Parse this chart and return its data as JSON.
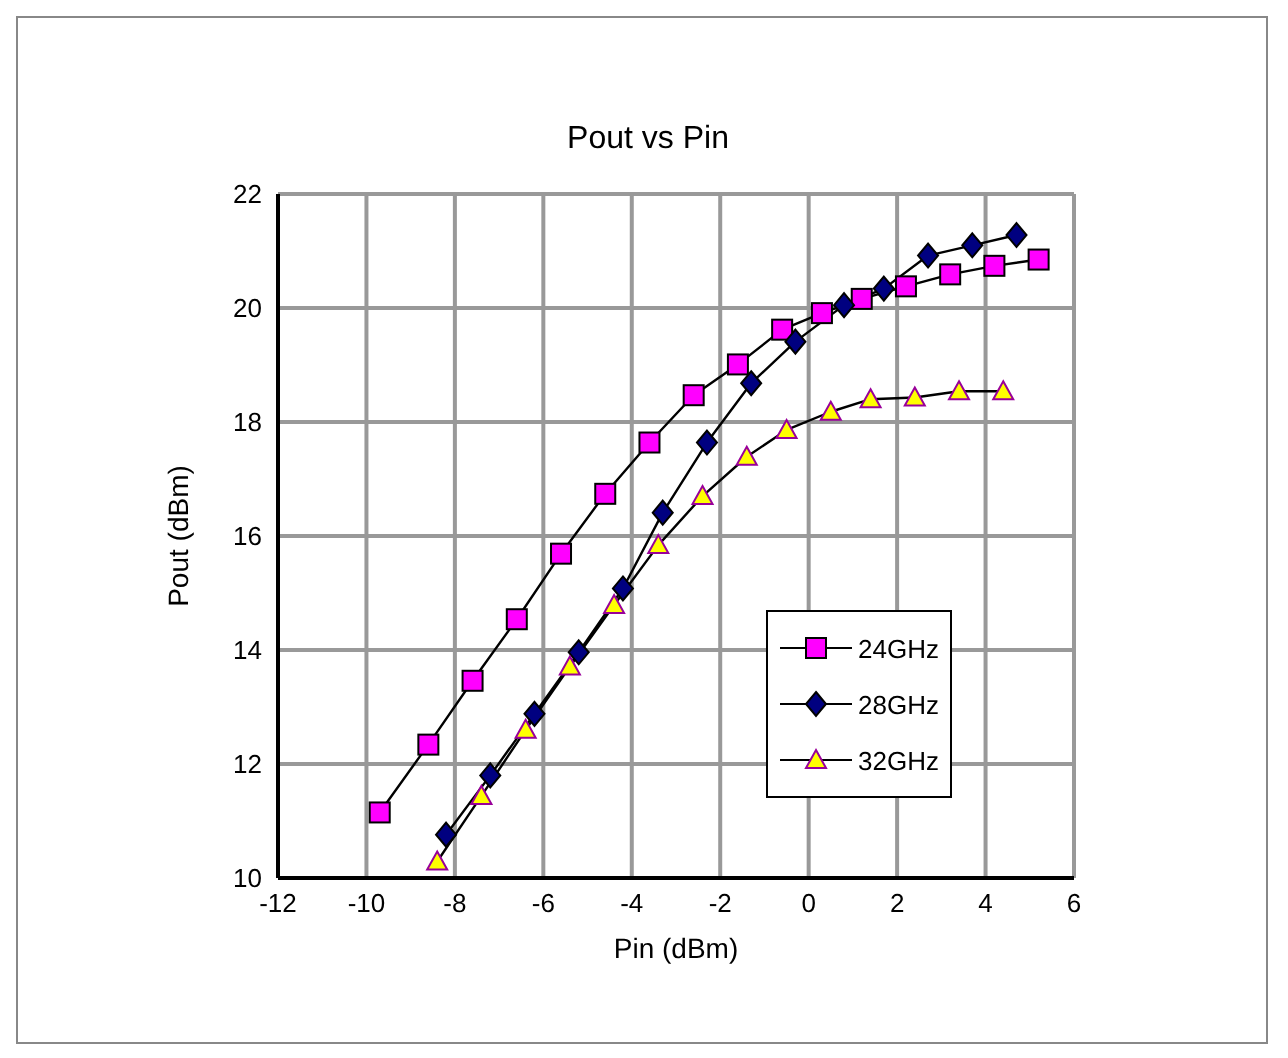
{
  "chart_data": {
    "type": "line",
    "title": "Pout vs Pin",
    "xlabel": "Pin (dBm)",
    "ylabel": "Pout (dBm)",
    "xlim": [
      -12,
      6
    ],
    "xticks": [
      -12,
      -10,
      -8,
      -6,
      -4,
      -2,
      0,
      2,
      4,
      6
    ],
    "ylim": [
      10,
      22
    ],
    "yticks": [
      10,
      12,
      14,
      16,
      18,
      20,
      22
    ],
    "grid": true,
    "legend": "bottom right",
    "line_style": "solid",
    "series": [
      {
        "name": "24GHz",
        "color": "#ff00ff",
        "marker": "square",
        "x": [
          -9.7,
          -8.6,
          -7.6,
          -6.6,
          -5.6,
          -4.6,
          -3.6,
          -2.6,
          -1.6,
          -0.6,
          0.3,
          1.2,
          2.2,
          3.2,
          4.2,
          5.2
        ],
        "values": [
          11.15,
          12.34,
          13.46,
          14.54,
          15.69,
          16.74,
          17.64,
          18.47,
          19.01,
          19.62,
          19.91,
          20.16,
          20.38,
          20.59,
          20.74,
          20.85
        ]
      },
      {
        "name": "28GHz",
        "color": "#000080",
        "marker": "diamond",
        "x": [
          -8.2,
          -7.2,
          -6.2,
          -5.2,
          -4.2,
          -3.3,
          -2.3,
          -1.3,
          -0.3,
          0.8,
          1.7,
          2.7,
          3.7,
          4.7
        ],
        "values": [
          10.76,
          11.8,
          12.88,
          13.96,
          15.08,
          16.41,
          17.64,
          18.68,
          19.41,
          20.05,
          20.34,
          20.92,
          21.1,
          21.28
        ]
      },
      {
        "name": "32GHz",
        "color": "#ffff00",
        "marker": "triangle",
        "x": [
          -8.4,
          -7.4,
          -6.4,
          -5.4,
          -4.4,
          -3.4,
          -2.4,
          -1.4,
          -0.5,
          0.5,
          1.4,
          2.4,
          3.4,
          4.4
        ],
        "values": [
          10.29,
          11.44,
          12.6,
          13.71,
          14.79,
          15.84,
          16.7,
          17.39,
          17.86,
          18.18,
          18.4,
          18.43,
          18.54,
          18.54
        ]
      }
    ]
  }
}
